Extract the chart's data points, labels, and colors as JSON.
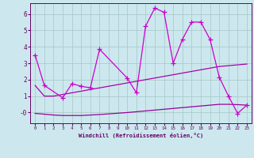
{
  "xlabel": "Windchill (Refroidissement éolien,°C)",
  "background_color": "#cce8ee",
  "grid_color": "#aacccc",
  "line_color1": "#aa00aa",
  "line_color2": "#cc00cc",
  "line_color3": "#990099",
  "xlim": [
    -0.5,
    23.5
  ],
  "ylim": [
    -0.65,
    6.65
  ],
  "xticks": [
    0,
    1,
    2,
    3,
    4,
    5,
    6,
    7,
    8,
    9,
    10,
    11,
    12,
    13,
    14,
    15,
    16,
    17,
    18,
    19,
    20,
    21,
    22,
    23
  ],
  "yticks": [
    0,
    1,
    2,
    3,
    4,
    5,
    6
  ],
  "ytick_labels": [
    "-0",
    "1",
    "2",
    "3",
    "4",
    "5",
    "6"
  ],
  "series1_x": [
    0,
    1,
    3,
    4,
    5,
    6,
    7,
    10,
    11,
    12,
    13,
    14,
    15,
    16,
    17,
    18,
    19,
    20,
    21,
    22,
    23
  ],
  "series1_y": [
    3.5,
    1.65,
    0.9,
    1.75,
    1.6,
    1.5,
    3.85,
    2.1,
    1.2,
    5.25,
    6.35,
    6.1,
    3.0,
    4.45,
    5.5,
    5.5,
    4.45,
    2.15,
    1.0,
    -0.05,
    0.45
  ],
  "series2_x": [
    0,
    1,
    2,
    3,
    4,
    5,
    6,
    7,
    8,
    9,
    10,
    11,
    12,
    13,
    14,
    15,
    16,
    17,
    18,
    19,
    20,
    21,
    22,
    23
  ],
  "series2_y": [
    1.65,
    1.0,
    1.0,
    1.1,
    1.2,
    1.3,
    1.4,
    1.5,
    1.6,
    1.7,
    1.8,
    1.9,
    2.0,
    2.1,
    2.2,
    2.3,
    2.4,
    2.5,
    2.6,
    2.7,
    2.8,
    2.85,
    2.9,
    2.95
  ],
  "series3_x": [
    0,
    1,
    2,
    3,
    4,
    5,
    6,
    7,
    8,
    9,
    10,
    11,
    12,
    13,
    14,
    15,
    16,
    17,
    18,
    19,
    20,
    21,
    22,
    23
  ],
  "series3_y": [
    -0.05,
    -0.1,
    -0.15,
    -0.18,
    -0.18,
    -0.18,
    -0.15,
    -0.12,
    -0.08,
    -0.04,
    0.0,
    0.05,
    0.1,
    0.15,
    0.2,
    0.25,
    0.3,
    0.35,
    0.4,
    0.45,
    0.5,
    0.5,
    0.48,
    0.45
  ]
}
